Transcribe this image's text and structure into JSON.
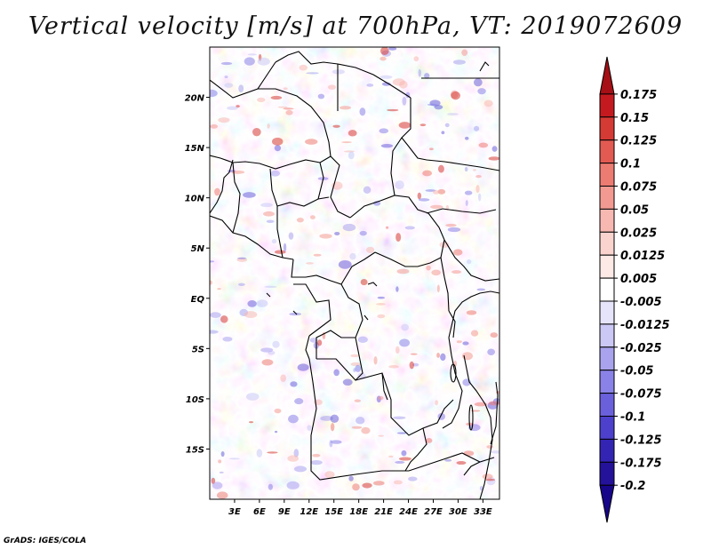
{
  "title": "Vertical velocity [m/s] at 700hPa, VT: 2019072609",
  "credit": "GrADS: IGES/COLA",
  "map": {
    "lon_range": [
      0,
      35
    ],
    "lat_range": [
      -20,
      25
    ],
    "lon_ticks": [
      "3E",
      "6E",
      "9E",
      "12E",
      "15E",
      "18E",
      "21E",
      "24E",
      "27E",
      "30E",
      "33E"
    ],
    "lat_ticks": [
      "20N",
      "15N",
      "10N",
      "5N",
      "EQ",
      "5S",
      "10S",
      "15S"
    ]
  },
  "colorbar": {
    "labels": [
      "0.175",
      "0.15",
      "0.125",
      "0.1",
      "0.075",
      "0.05",
      "0.025",
      "0.0125",
      "0.005",
      "-0.005",
      "-0.0125",
      "-0.025",
      "-0.05",
      "-0.075",
      "-0.1",
      "-0.125",
      "-0.175",
      "-0.2"
    ],
    "colors": [
      "#a50f15",
      "#c41a1f",
      "#d63a34",
      "#e25a52",
      "#ec7b72",
      "#f29a92",
      "#f7b8b2",
      "#fad3cf",
      "#fde9e6",
      "#ffffff",
      "#e6e4fb",
      "#cbc8f5",
      "#a9a3ee",
      "#8a82e6",
      "#6b60db",
      "#4c40cc",
      "#3424b4",
      "#24129a",
      "#17068a"
    ]
  }
}
